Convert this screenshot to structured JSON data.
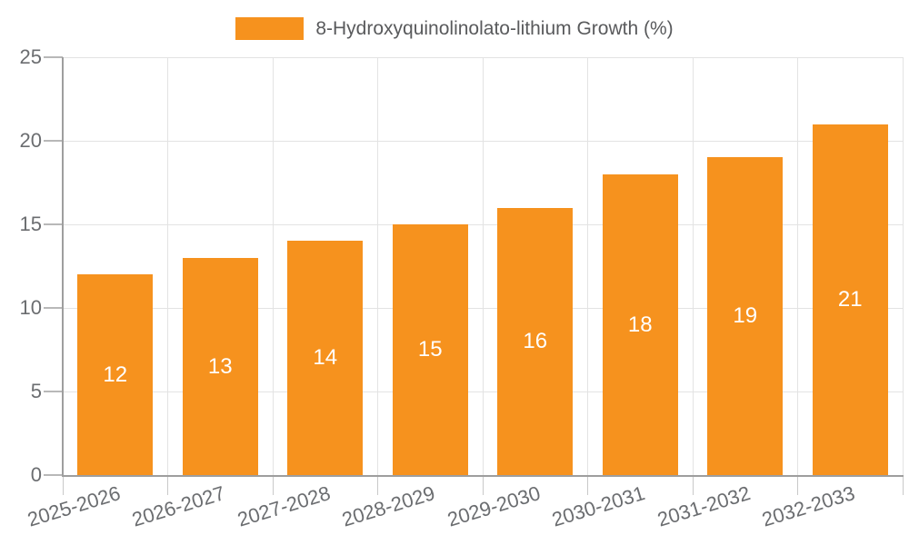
{
  "legend": {
    "label": "8-Hydroxyquinolinolato-lithium Growth (%)",
    "swatch_color": "#F6921E"
  },
  "chart_data": {
    "type": "bar",
    "title": "8-Hydroxyquinolinolato-lithium Growth (%)",
    "series_label": "8-Hydroxyquinolinolato-lithium Growth (%)",
    "categories": [
      "2025-2026",
      "2026-2027",
      "2027-2028",
      "2028-2029",
      "2029-2030",
      "2030-2031",
      "2031-2032",
      "2032-2033"
    ],
    "values": [
      12,
      13,
      14,
      15,
      16,
      18,
      19,
      21
    ],
    "value_labels": [
      "12",
      "13",
      "14",
      "15",
      "16",
      "18",
      "19",
      "21"
    ],
    "xlabel": "",
    "ylabel": "",
    "ylim": [
      0,
      25
    ],
    "yticks": [
      0,
      5,
      10,
      15,
      20,
      25
    ],
    "grid": true,
    "legend_position": "top-center",
    "bar_color": "#F6921E",
    "value_label_color": "#FFFFFF",
    "gridline_color": "#E3E3E3",
    "axis_color": "#9E9E9E",
    "tick_label_color": "#6B6D70",
    "background_color": "#FFFFFF",
    "x_tick_label_rotation_deg": -17
  }
}
